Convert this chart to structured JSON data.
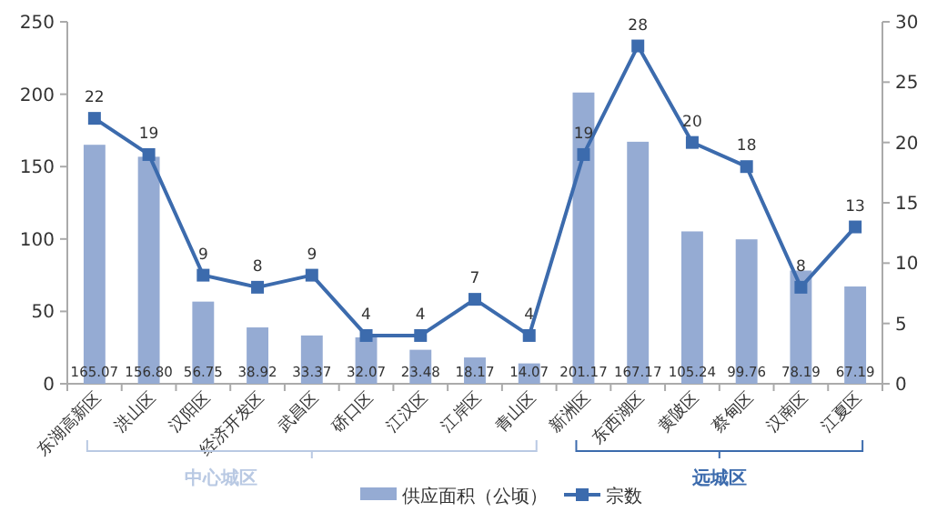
{
  "chart_data": {
    "type": "bar",
    "categories": [
      "东湖高新区",
      "洪山区",
      "汉阳区",
      "经济开发区",
      "武昌区",
      "硚口区",
      "江汉区",
      "江岸区",
      "青山区",
      "新洲区",
      "东西湖区",
      "黄陂区",
      "蔡甸区",
      "汉南区",
      "江夏区"
    ],
    "series": [
      {
        "name": "供应面积（公顷）",
        "color": "#95abd3",
        "values": [
          165.07,
          156.8,
          56.75,
          38.92,
          33.37,
          32.07,
          23.48,
          18.17,
          14.07,
          201.17,
          167.17,
          105.24,
          99.76,
          78.19,
          67.19
        ],
        "value_labels": [
          "165.07",
          "156.80",
          "56.75",
          "38.92",
          "33.37",
          "32.07",
          "23.48",
          "18.17",
          "14.07",
          "201.17",
          "167.17",
          "105.24",
          "99.76",
          "78.19",
          "67.19"
        ]
      },
      {
        "name": "宗数",
        "type": "line",
        "axis": "y2",
        "color": "#3c6bad",
        "values": [
          22,
          19,
          9,
          8,
          9,
          4,
          4,
          7,
          4,
          19,
          28,
          20,
          18,
          8,
          13
        ]
      }
    ],
    "ylim": [
      0,
      250
    ],
    "yticks": [
      0,
      50,
      100,
      150,
      200,
      250
    ],
    "y2lim": [
      0,
      30
    ],
    "y2ticks": [
      0,
      5,
      10,
      15,
      20,
      25,
      30
    ],
    "data_labels": true,
    "marker": "square",
    "legend": "bottom",
    "grid": false,
    "annotations": [
      "中心城区",
      "远城区"
    ]
  }
}
